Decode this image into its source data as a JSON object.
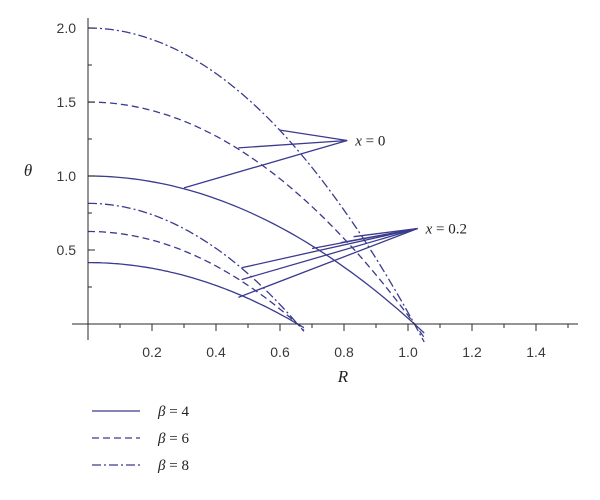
{
  "chart_data": {
    "type": "line",
    "xlabel": "R",
    "ylabel": "θ",
    "xlim": [
      0,
      1.55
    ],
    "ylim": [
      -0.1,
      2.05
    ],
    "x_ticks": [
      "0.2",
      "0.4",
      "0.6",
      "0.8",
      "1.0",
      "1.2",
      "1.4"
    ],
    "y_ticks": [
      "0.5",
      "1.0",
      "1.5",
      "2.0"
    ],
    "line_color": "#3b3b8f",
    "series": [
      {
        "name": "β = 4",
        "style": "solid",
        "group": "x = 0",
        "theta0": 1.0,
        "root": 1.02
      },
      {
        "name": "β = 6",
        "style": "dashed",
        "group": "x = 0",
        "theta0": 1.5,
        "root": 1.02
      },
      {
        "name": "β = 8",
        "style": "dash-dot",
        "group": "x = 0",
        "theta0": 2.0,
        "root": 1.02
      },
      {
        "name": "β = 4",
        "style": "solid",
        "group": "x = 0.2",
        "theta0": 0.415,
        "root": 0.655
      },
      {
        "name": "β = 6",
        "style": "dashed",
        "group": "x = 0.2",
        "theta0": 0.625,
        "root": 0.655
      },
      {
        "name": "β = 8",
        "style": "dash-dot",
        "group": "x = 0.2",
        "theta0": 0.815,
        "root": 0.655
      }
    ],
    "annotations": [
      {
        "text": "x = 0",
        "targets": [
          [
            0.3,
            0.92
          ],
          [
            0.47,
            1.19
          ],
          [
            0.6,
            1.31
          ]
        ],
        "anchor": [
          0.81,
          1.24
        ]
      },
      {
        "text": "x = 0.2",
        "targets": [
          [
            0.47,
            0.18
          ],
          [
            0.48,
            0.3
          ],
          [
            0.48,
            0.38
          ],
          [
            0.7,
            0.51
          ],
          [
            0.79,
            0.55
          ],
          [
            0.83,
            0.59
          ]
        ],
        "anchor": [
          1.03,
          0.645
        ]
      }
    ],
    "legend": {
      "placement": "bottom-left",
      "entries": [
        {
          "label": "β = 4",
          "style": "solid"
        },
        {
          "label": "β = 6",
          "style": "dashed"
        },
        {
          "label": "β = 8",
          "style": "dash-dot"
        }
      ]
    }
  }
}
